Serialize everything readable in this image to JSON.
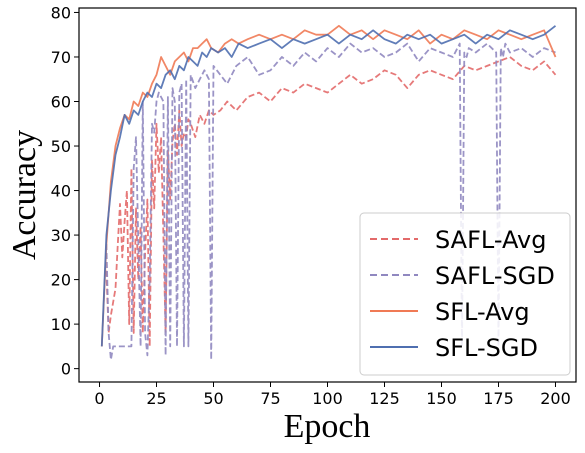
{
  "chart_data": {
    "type": "line",
    "title": "",
    "xlabel": "Epoch",
    "ylabel": "Accuracy",
    "xlim": [
      -9,
      209
    ],
    "ylim": [
      -3,
      81
    ],
    "xticks": [
      0,
      25,
      50,
      75,
      100,
      125,
      150,
      175,
      200
    ],
    "yticks": [
      0,
      10,
      20,
      30,
      40,
      50,
      60,
      70,
      80
    ],
    "grid": false,
    "legend_position": "lower-right",
    "series": [
      {
        "name": "SAFL-Avg",
        "color": "#e36a6a",
        "style": "dashed",
        "x": [
          3,
          4,
          5,
          6,
          7,
          8,
          9,
          10,
          11,
          12,
          13,
          14,
          15,
          16,
          17,
          18,
          19,
          20,
          21,
          22,
          23,
          24,
          25,
          26,
          27,
          28,
          29,
          30,
          31,
          32,
          33,
          34,
          35,
          36,
          37,
          38,
          39,
          40,
          42,
          44,
          46,
          48,
          50,
          53,
          56,
          60,
          65,
          70,
          75,
          80,
          85,
          90,
          95,
          100,
          105,
          110,
          115,
          120,
          125,
          130,
          135,
          140,
          145,
          150,
          155,
          160,
          165,
          170,
          175,
          180,
          185,
          190,
          195,
          200
        ],
        "y": [
          22,
          8,
          12,
          15,
          18,
          28,
          37,
          25,
          33,
          40,
          10,
          45,
          8,
          36,
          20,
          32,
          8,
          26,
          38,
          5,
          47,
          36,
          55,
          44,
          52,
          30,
          8,
          49,
          38,
          51,
          55,
          48,
          58,
          50,
          53,
          52,
          56,
          55,
          52,
          57,
          55,
          58,
          57,
          58,
          60,
          58,
          61,
          62,
          60,
          63,
          62,
          64,
          63,
          62,
          64,
          66,
          64,
          65,
          67,
          66,
          63,
          66,
          67,
          66,
          65,
          68,
          67,
          68,
          69,
          70,
          68,
          67,
          69,
          66
        ]
      },
      {
        "name": "SAFL-SGD",
        "color": "#9088c0",
        "style": "dashed",
        "x": [
          3,
          4,
          5,
          6,
          8,
          10,
          12,
          13,
          14,
          15,
          16,
          18,
          19,
          20,
          21,
          22,
          23,
          24,
          25,
          26,
          28,
          29,
          30,
          31,
          32,
          33,
          34,
          35,
          36,
          37,
          38,
          39,
          40,
          42,
          44,
          46,
          48,
          49,
          50,
          53,
          56,
          60,
          65,
          70,
          75,
          80,
          85,
          90,
          95,
          100,
          105,
          110,
          115,
          120,
          125,
          130,
          135,
          140,
          145,
          150,
          155,
          158,
          159,
          160,
          161,
          162,
          165,
          170,
          174,
          175,
          176,
          177,
          178,
          180,
          185,
          190,
          195,
          200
        ],
        "y": [
          28,
          8,
          2,
          5,
          5,
          5,
          5,
          5,
          5,
          45,
          52,
          5,
          60,
          8,
          3,
          20,
          55,
          53,
          60,
          62,
          60,
          3,
          61,
          5,
          63,
          60,
          5,
          62,
          64,
          5,
          65,
          5,
          66,
          63,
          65,
          67,
          65,
          2,
          68,
          66,
          64,
          68,
          70,
          66,
          67,
          70,
          68,
          71,
          69,
          72,
          70,
          73,
          71,
          72,
          70,
          71,
          73,
          69,
          72,
          71,
          70,
          73,
          5,
          71,
          70,
          72,
          71,
          73,
          71,
          5,
          72,
          70,
          73,
          71,
          72,
          70,
          72,
          71
        ]
      },
      {
        "name": "SFL-Avg",
        "color": "#f07a55",
        "style": "solid",
        "x": [
          1,
          3,
          5,
          7,
          9,
          11,
          13,
          15,
          17,
          19,
          21,
          23,
          25,
          27,
          29,
          31,
          33,
          35,
          37,
          39,
          41,
          43,
          45,
          47,
          49,
          52,
          55,
          58,
          61,
          65,
          70,
          75,
          80,
          85,
          90,
          95,
          100,
          105,
          110,
          115,
          120,
          125,
          130,
          135,
          140,
          145,
          150,
          155,
          160,
          165,
          170,
          175,
          180,
          185,
          190,
          195,
          200
        ],
        "y": [
          5,
          28,
          42,
          50,
          54,
          57,
          56,
          60,
          59,
          62,
          61,
          64,
          66,
          70,
          68,
          66,
          69,
          70,
          71,
          69,
          72,
          72,
          73,
          74,
          72,
          71,
          73,
          74,
          73,
          74,
          75,
          74,
          75,
          74,
          76,
          75,
          75,
          77,
          75,
          76,
          74,
          76,
          75,
          74,
          76,
          73,
          75,
          74,
          76,
          75,
          74,
          76,
          75,
          74,
          75,
          76,
          70
        ]
      },
      {
        "name": "SFL-SGD",
        "color": "#4f6fb0",
        "style": "solid",
        "x": [
          1,
          3,
          5,
          7,
          9,
          11,
          13,
          15,
          17,
          19,
          21,
          23,
          25,
          27,
          29,
          31,
          33,
          35,
          37,
          39,
          41,
          43,
          45,
          47,
          49,
          52,
          55,
          58,
          61,
          65,
          70,
          75,
          80,
          85,
          90,
          95,
          100,
          105,
          110,
          115,
          120,
          125,
          130,
          135,
          140,
          145,
          150,
          155,
          160,
          165,
          170,
          175,
          180,
          185,
          190,
          195,
          200
        ],
        "y": [
          5,
          30,
          40,
          48,
          52,
          57,
          55,
          58,
          57,
          60,
          62,
          61,
          64,
          63,
          66,
          67,
          65,
          68,
          67,
          70,
          69,
          68,
          71,
          70,
          72,
          71,
          72,
          70,
          73,
          72,
          73,
          74,
          72,
          74,
          73,
          74,
          75,
          73,
          75,
          74,
          76,
          74,
          73,
          75,
          74,
          75,
          73,
          74,
          75,
          73,
          75,
          74,
          76,
          75,
          74,
          75,
          77
        ]
      }
    ]
  }
}
